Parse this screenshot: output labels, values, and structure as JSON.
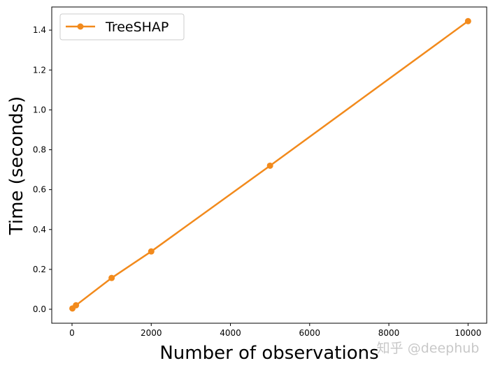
{
  "chart_data": {
    "type": "line",
    "title": "",
    "xlabel": "Number of observations",
    "ylabel": "Time (seconds)",
    "xlim": [
      -512,
      10471
    ],
    "ylim": [
      -0.07,
      1.516
    ],
    "x_ticks": [
      0,
      2000,
      4000,
      6000,
      8000,
      10000
    ],
    "x_tick_labels": [
      "0",
      "2000",
      "4000",
      "6000",
      "8000",
      "10000"
    ],
    "y_ticks": [
      0.0,
      0.2,
      0.4,
      0.6,
      0.8,
      1.0,
      1.2,
      1.4
    ],
    "y_tick_labels": [
      "0.0",
      "0.2",
      "0.4",
      "0.6",
      "0.8",
      "1.0",
      "1.2",
      "1.4"
    ],
    "grid": false,
    "legend_position": "top-left",
    "series": [
      {
        "name": "TreeSHAP",
        "color": "#f28a1c",
        "marker": "circle",
        "x": [
          10,
          100,
          1000,
          2000,
          5000,
          10000
        ],
        "y": [
          0.004,
          0.02,
          0.157,
          0.29,
          0.72,
          1.445
        ]
      }
    ]
  },
  "watermark": "知乎 @deephub"
}
